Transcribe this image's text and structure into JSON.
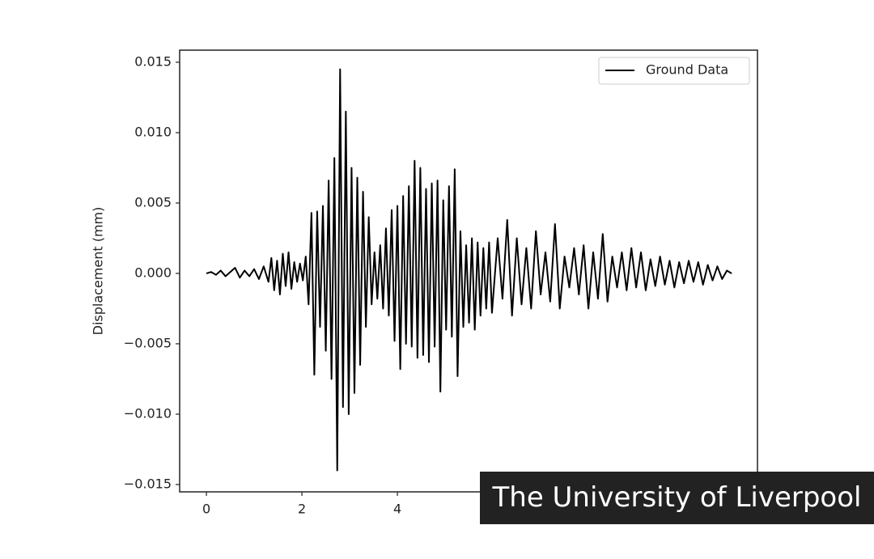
{
  "chart_data": {
    "type": "line",
    "ylabel": "Displacement (mm)",
    "x": [
      0,
      0.1,
      0.2,
      0.3,
      0.4,
      0.5,
      0.6,
      0.7,
      0.8,
      0.9,
      1.0,
      1.1,
      1.2,
      1.3,
      1.36,
      1.42,
      1.48,
      1.54,
      1.6,
      1.66,
      1.72,
      1.78,
      1.84,
      1.9,
      1.96,
      2.02,
      2.08,
      2.14,
      2.2,
      2.26,
      2.32,
      2.38,
      2.44,
      2.5,
      2.56,
      2.62,
      2.68,
      2.74,
      2.8,
      2.86,
      2.92,
      2.98,
      3.04,
      3.1,
      3.16,
      3.22,
      3.28,
      3.34,
      3.4,
      3.46,
      3.52,
      3.58,
      3.64,
      3.7,
      3.76,
      3.82,
      3.88,
      3.94,
      4.0,
      4.06,
      4.12,
      4.18,
      4.24,
      4.3,
      4.36,
      4.42,
      4.48,
      4.54,
      4.6,
      4.66,
      4.72,
      4.78,
      4.84,
      4.9,
      4.96,
      5.02,
      5.08,
      5.14,
      5.2,
      5.26,
      5.32,
      5.38,
      5.44,
      5.5,
      5.56,
      5.62,
      5.68,
      5.74,
      5.8,
      5.86,
      5.92,
      5.98,
      6.1,
      6.2,
      6.3,
      6.4,
      6.5,
      6.6,
      6.7,
      6.8,
      6.9,
      7.0,
      7.1,
      7.2,
      7.3,
      7.4,
      7.5,
      7.6,
      7.7,
      7.8,
      7.9,
      8.0,
      8.1,
      8.2,
      8.3,
      8.4,
      8.5,
      8.6,
      8.7,
      8.8,
      8.9,
      9.0,
      9.1,
      9.2,
      9.3,
      9.4,
      9.5,
      9.6,
      9.7,
      9.8,
      9.9,
      10.0,
      10.1,
      10.2,
      10.3,
      10.4,
      10.5,
      10.6,
      10.7,
      10.8,
      10.9,
      11.0
    ],
    "series": [
      {
        "name": "Ground Data",
        "color": "#000000",
        "values": [
          0,
          0.0001,
          -0.0001,
          0.0002,
          -0.0002,
          0.0001,
          0.0004,
          -0.0003,
          0.0002,
          -0.0002,
          0.0003,
          -0.0004,
          0.0005,
          -0.0006,
          0.0011,
          -0.0012,
          0.0009,
          -0.0015,
          0.0014,
          -0.0009,
          0.0015,
          -0.0011,
          0.0008,
          -0.0006,
          0.0007,
          -0.0005,
          0.0012,
          -0.0022,
          0.0043,
          -0.0072,
          0.0044,
          -0.0038,
          0.0048,
          -0.0055,
          0.0066,
          -0.0075,
          0.0082,
          -0.014,
          0.0145,
          -0.0095,
          0.0115,
          -0.01,
          0.0075,
          -0.0085,
          0.0068,
          -0.0065,
          0.0058,
          -0.0038,
          0.004,
          -0.0022,
          0.0015,
          -0.0018,
          0.002,
          -0.0025,
          0.0032,
          -0.003,
          0.0045,
          -0.0048,
          0.0048,
          -0.0068,
          0.0055,
          -0.005,
          0.0062,
          -0.0052,
          0.008,
          -0.006,
          0.0075,
          -0.0058,
          0.006,
          -0.0063,
          0.0064,
          -0.0052,
          0.0066,
          -0.0084,
          0.0052,
          -0.004,
          0.0062,
          -0.0045,
          0.0074,
          -0.0073,
          0.003,
          -0.0038,
          0.002,
          -0.0035,
          0.0025,
          -0.004,
          0.0022,
          -0.003,
          0.0018,
          -0.0025,
          0.0022,
          -0.0028,
          0.0025,
          -0.0018,
          0.0038,
          -0.003,
          0.0025,
          -0.0022,
          0.0018,
          -0.0025,
          0.003,
          -0.0015,
          0.0015,
          -0.002,
          0.0035,
          -0.0025,
          0.0012,
          -0.001,
          0.0018,
          -0.0015,
          0.002,
          -0.0025,
          0.0015,
          -0.0018,
          0.0028,
          -0.002,
          0.0012,
          -0.001,
          0.0015,
          -0.0012,
          0.0018,
          -0.001,
          0.0015,
          -0.0012,
          0.001,
          -0.0009,
          0.0012,
          -0.0008,
          0.0009,
          -0.001,
          0.0008,
          -0.0007,
          0.0009,
          -0.0006,
          0.0008,
          -0.0008,
          0.0006,
          -0.0005,
          0.0005,
          -0.0004,
          0.0002,
          0
        ]
      }
    ],
    "xlim": [
      -0.56,
      11.54
    ],
    "xticks": [
      0,
      2,
      4
    ],
    "ylim": [
      -0.01552,
      0.01586
    ],
    "yticks": [
      {
        "value": -0.015,
        "label": "−0.015"
      },
      {
        "value": -0.01,
        "label": "−0.010"
      },
      {
        "value": -0.005,
        "label": "−0.005"
      },
      {
        "value": 0,
        "label": "0.000"
      },
      {
        "value": 0.005,
        "label": "0.005"
      },
      {
        "value": 0.01,
        "label": "0.010"
      },
      {
        "value": 0.015,
        "label": "0.015"
      }
    ],
    "legend": "upper right"
  },
  "caption": "The University of Liverpool"
}
